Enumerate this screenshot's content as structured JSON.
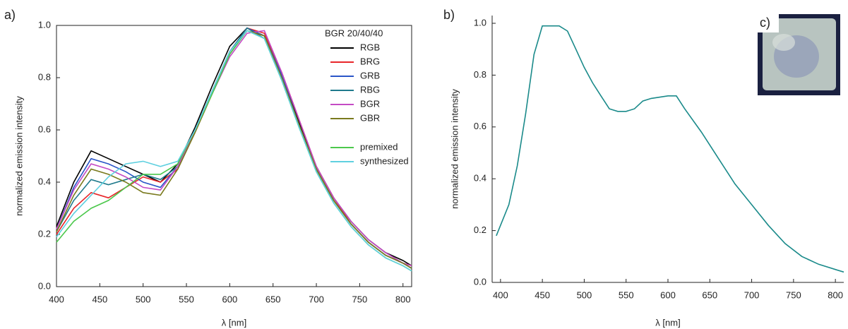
{
  "chart_data": [
    {
      "type": "line",
      "panel_label": "a)",
      "xlabel": "λ [nm]",
      "ylabel": "normalized emission intensity",
      "legend_title": "BGR 20/40/40",
      "legend": "upper right",
      "frame": true,
      "x": [
        400,
        420,
        440,
        460,
        480,
        500,
        520,
        540,
        560,
        580,
        600,
        620,
        640,
        660,
        680,
        700,
        720,
        740,
        760,
        780,
        800,
        810
      ],
      "xlim": [
        400,
        810
      ],
      "xticks": [
        400,
        450,
        500,
        550,
        600,
        650,
        700,
        750,
        800
      ],
      "ylim": [
        0,
        1
      ],
      "yticks": [
        {
          "value": 0,
          "label": "0.0"
        },
        0.2,
        0.4,
        0.6,
        0.8,
        {
          "value": 1,
          "label": "1.0"
        }
      ],
      "series": [
        {
          "name": "RGB",
          "color": "#000000",
          "values": [
            0.23,
            0.4,
            0.52,
            0.49,
            0.46,
            0.43,
            0.4,
            0.47,
            0.61,
            0.77,
            0.92,
            0.99,
            0.96,
            0.81,
            0.63,
            0.46,
            0.34,
            0.25,
            0.18,
            0.13,
            0.1,
            0.08
          ]
        },
        {
          "name": "BRG",
          "color": "#e8262a",
          "values": [
            0.2,
            0.3,
            0.36,
            0.34,
            0.38,
            0.42,
            0.4,
            0.45,
            0.6,
            0.75,
            0.9,
            0.99,
            0.97,
            0.82,
            0.64,
            0.46,
            0.34,
            0.24,
            0.17,
            0.12,
            0.09,
            0.08
          ]
        },
        {
          "name": "GRB",
          "color": "#2a55c8",
          "values": [
            0.22,
            0.38,
            0.49,
            0.47,
            0.44,
            0.4,
            0.38,
            0.46,
            0.6,
            0.75,
            0.9,
            0.99,
            0.96,
            0.81,
            0.62,
            0.45,
            0.33,
            0.24,
            0.17,
            0.12,
            0.09,
            0.07
          ]
        },
        {
          "name": "RBG",
          "color": "#1f7a8c",
          "values": [
            0.21,
            0.33,
            0.41,
            0.39,
            0.41,
            0.43,
            0.41,
            0.46,
            0.6,
            0.75,
            0.9,
            0.99,
            0.95,
            0.8,
            0.62,
            0.45,
            0.33,
            0.24,
            0.17,
            0.12,
            0.09,
            0.07
          ]
        },
        {
          "name": "BGR",
          "color": "#c44bc4",
          "values": [
            0.22,
            0.37,
            0.47,
            0.45,
            0.42,
            0.38,
            0.37,
            0.46,
            0.6,
            0.74,
            0.88,
            0.97,
            0.98,
            0.82,
            0.64,
            0.46,
            0.34,
            0.25,
            0.18,
            0.13,
            0.09,
            0.08
          ]
        },
        {
          "name": "GBR",
          "color": "#7a7a1e",
          "values": [
            0.21,
            0.35,
            0.45,
            0.43,
            0.4,
            0.36,
            0.35,
            0.45,
            0.59,
            0.74,
            0.89,
            0.98,
            0.96,
            0.8,
            0.62,
            0.45,
            0.33,
            0.24,
            0.17,
            0.12,
            0.09,
            0.07
          ]
        },
        {
          "name": "premixed",
          "color": "#4cc84c",
          "values": [
            0.17,
            0.25,
            0.3,
            0.33,
            0.38,
            0.43,
            0.43,
            0.47,
            0.6,
            0.74,
            0.89,
            0.98,
            0.95,
            0.79,
            0.61,
            0.44,
            0.32,
            0.23,
            0.16,
            0.11,
            0.08,
            0.06
          ]
        },
        {
          "name": "synthesized",
          "color": "#5fd0e0",
          "values": [
            0.19,
            0.28,
            0.35,
            0.42,
            0.47,
            0.48,
            0.46,
            0.48,
            0.6,
            0.75,
            0.9,
            0.98,
            0.95,
            0.79,
            0.61,
            0.44,
            0.32,
            0.23,
            0.16,
            0.11,
            0.08,
            0.06
          ]
        }
      ]
    },
    {
      "type": "line",
      "panel_label": "b)",
      "inset_label": "c)",
      "xlabel": "λ [nm]",
      "ylabel": "normalized emission intensity",
      "frame": false,
      "color": "#1a8a8a",
      "x": [
        395,
        410,
        420,
        430,
        440,
        450,
        470,
        480,
        490,
        500,
        510,
        520,
        530,
        540,
        550,
        560,
        570,
        580,
        600,
        610,
        620,
        640,
        660,
        680,
        700,
        720,
        740,
        760,
        780,
        800,
        810
      ],
      "values": [
        0.18,
        0.3,
        0.45,
        0.65,
        0.88,
        0.99,
        0.99,
        0.97,
        0.9,
        0.83,
        0.77,
        0.72,
        0.67,
        0.66,
        0.66,
        0.67,
        0.7,
        0.71,
        0.72,
        0.72,
        0.67,
        0.58,
        0.48,
        0.38,
        0.3,
        0.22,
        0.15,
        0.1,
        0.07,
        0.05,
        0.04
      ],
      "xlim": [
        390,
        810
      ],
      "xticks": [
        400,
        450,
        500,
        550,
        600,
        650,
        700,
        750,
        800
      ],
      "ylim": [
        0,
        1.03
      ],
      "yticks": [
        {
          "value": 0,
          "label": "0.0"
        },
        0.2,
        0.4,
        0.6,
        0.8,
        {
          "value": 1,
          "label": "1.0"
        }
      ]
    }
  ]
}
